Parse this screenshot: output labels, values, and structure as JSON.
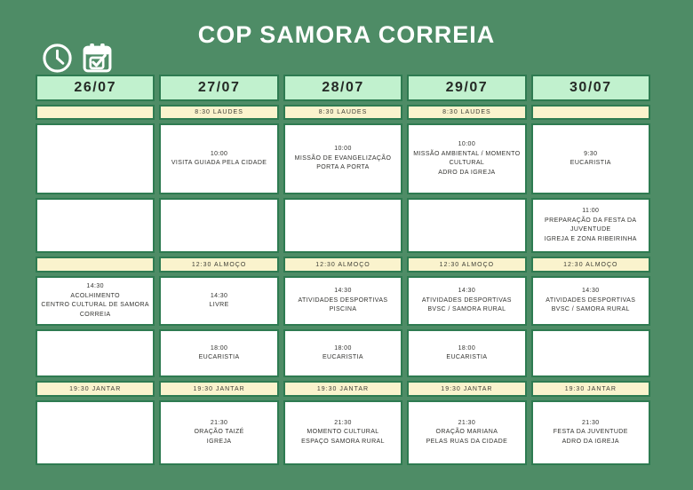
{
  "title": "COP SAMORA CORREIA",
  "header_icons": [
    {
      "name": "clock-icon"
    },
    {
      "name": "calendar-check-icon"
    }
  ],
  "colors": {
    "background": "#4e8c66",
    "cell_border": "#2e7b51",
    "date_header_bg": "#c1f1ce",
    "meal_row_bg": "#faf3cd",
    "event_cell_bg": "#ffffff",
    "title_text": "#ffffff",
    "cell_text": "#333330"
  },
  "table": {
    "columns": [
      "26/07",
      "27/07",
      "28/07",
      "29/07",
      "30/07"
    ],
    "rows": [
      {
        "kind": "meal",
        "cells": [
          "",
          "8:30 LAUDES",
          "8:30 LAUDES",
          "8:30 LAUDES",
          ""
        ]
      },
      {
        "kind": "event",
        "cells": [
          [],
          [
            "10:00",
            "VISITA GUIADA PELA CIDADE"
          ],
          [
            "10:00",
            "MISSÃO DE EVANGELIZAÇÃO",
            "PORTA A PORTA"
          ],
          [
            "10:00",
            "MISSÃO AMBIENTAL / MOMENTO",
            "CULTURAL",
            "ADRO DA IGREJA"
          ],
          [
            "9:30",
            "EUCARISTIA"
          ]
        ]
      },
      {
        "kind": "event",
        "cells": [
          [],
          [],
          [],
          [],
          [
            "11:00",
            "PREPARAÇÃO DA FESTA DA",
            "JUVENTUDE",
            "IGREJA E ZONA RIBEIRINHA"
          ]
        ]
      },
      {
        "kind": "meal",
        "cells": [
          "",
          "12:30 ALMOÇO",
          "12:30 ALMOÇO",
          "12:30 ALMOÇO",
          "12:30 ALMOÇO"
        ]
      },
      {
        "kind": "event",
        "cells": [
          [
            "14:30",
            "ACOLHIMENTO",
            "CENTRO CULTURAL DE SAMORA",
            "CORREIA"
          ],
          [
            "14:30",
            "LIVRE"
          ],
          [
            "14:30",
            "ATIVIDADES DESPORTIVAS",
            "PISCINA"
          ],
          [
            "14:30",
            "ATIVIDADES DESPORTIVAS",
            "BVSC / SAMORA RURAL"
          ],
          [
            "14:30",
            "ATIVIDADES DESPORTIVAS",
            "BVSC / SAMORA RURAL"
          ]
        ]
      },
      {
        "kind": "event",
        "cells": [
          [],
          [
            "18:00",
            "EUCARISTIA"
          ],
          [
            "18:00",
            "EUCARISTIA"
          ],
          [
            "18:00",
            "EUCARISTIA"
          ],
          []
        ]
      },
      {
        "kind": "meal",
        "cells": [
          "19:30 JANTAR",
          "19:30 JANTAR",
          "19:30 JANTAR",
          "19:30 JANTAR",
          "19:30 JANTAR"
        ]
      },
      {
        "kind": "event",
        "cells": [
          [],
          [
            "21:30",
            "ORAÇÃO TAIZÉ",
            "IGREJA"
          ],
          [
            "21:30",
            "MOMENTO CULTURAL",
            "ESPAÇO SAMORA RURAL"
          ],
          [
            "21:30",
            "ORAÇÃO MARIANA",
            "PELAS RUAS DA CIDADE"
          ],
          [
            "21:30",
            "FESTA DA JUVENTUDE",
            "ADRO DA IGREJA"
          ]
        ]
      }
    ]
  }
}
